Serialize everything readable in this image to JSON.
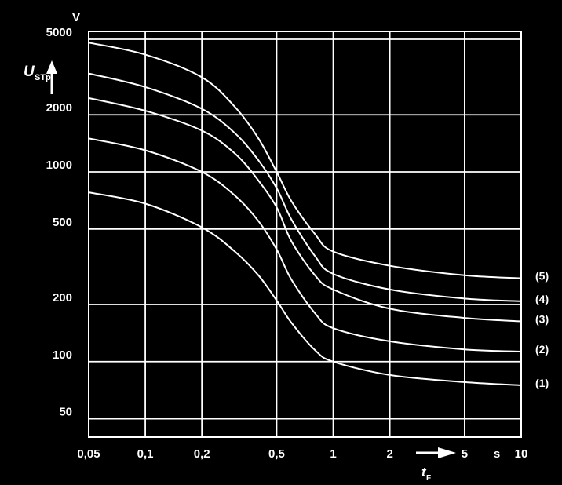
{
  "chart_data": {
    "type": "line",
    "title": "",
    "x_axis": {
      "symbol": "t",
      "subscript": "F",
      "unit": "s",
      "scale": "log",
      "range": [
        0.05,
        10
      ],
      "ticks": [
        {
          "value": 0.05,
          "label": "0,05"
        },
        {
          "value": 0.1,
          "label": "0,1"
        },
        {
          "value": 0.2,
          "label": "0,2"
        },
        {
          "value": 0.5,
          "label": "0,5"
        },
        {
          "value": 1,
          "label": "1"
        },
        {
          "value": 2,
          "label": "2"
        },
        {
          "value": 5,
          "label": "5"
        },
        {
          "value": 10,
          "label": "10"
        }
      ],
      "arrow": "right"
    },
    "y_axis": {
      "symbol": "U",
      "subscript": "STp",
      "unit": "V",
      "scale": "log",
      "range": [
        40,
        5500
      ],
      "ticks": [
        {
          "value": 50,
          "label": "50"
        },
        {
          "value": 100,
          "label": "100"
        },
        {
          "value": 200,
          "label": "200"
        },
        {
          "value": 500,
          "label": "500"
        },
        {
          "value": 1000,
          "label": "1000"
        },
        {
          "value": 2000,
          "label": "2000"
        },
        {
          "value": 5000,
          "label": "5000"
        }
      ],
      "arrow": "up"
    },
    "grid": true,
    "series": [
      {
        "name": "(1)",
        "x": [
          0.05,
          0.1,
          0.2,
          0.3,
          0.4,
          0.5,
          0.6,
          0.8,
          1,
          2,
          5,
          10
        ],
        "y": [
          780,
          680,
          510,
          380,
          285,
          210,
          160,
          115,
          100,
          85,
          78,
          75
        ]
      },
      {
        "name": "(2)",
        "x": [
          0.05,
          0.1,
          0.2,
          0.3,
          0.4,
          0.5,
          0.6,
          0.8,
          1,
          2,
          5,
          10
        ],
        "y": [
          1500,
          1300,
          1000,
          750,
          550,
          390,
          270,
          180,
          150,
          128,
          116,
          113
        ]
      },
      {
        "name": "(3)",
        "x": [
          0.05,
          0.1,
          0.2,
          0.3,
          0.4,
          0.5,
          0.6,
          0.8,
          1,
          2,
          5,
          10
        ],
        "y": [
          2450,
          2100,
          1650,
          1250,
          900,
          650,
          430,
          285,
          240,
          190,
          170,
          163
        ]
      },
      {
        "name": "(4)",
        "x": [
          0.05,
          0.1,
          0.2,
          0.3,
          0.4,
          0.5,
          0.6,
          0.8,
          1,
          2,
          5,
          10
        ],
        "y": [
          3300,
          2800,
          2150,
          1600,
          1150,
          820,
          560,
          360,
          290,
          240,
          215,
          208
        ]
      },
      {
        "name": "(5)",
        "x": [
          0.05,
          0.1,
          0.2,
          0.3,
          0.4,
          0.5,
          0.6,
          0.8,
          1,
          2,
          5,
          10
        ],
        "y": [
          4800,
          4150,
          3150,
          2200,
          1500,
          1000,
          700,
          470,
          380,
          320,
          285,
          275
        ]
      }
    ]
  }
}
